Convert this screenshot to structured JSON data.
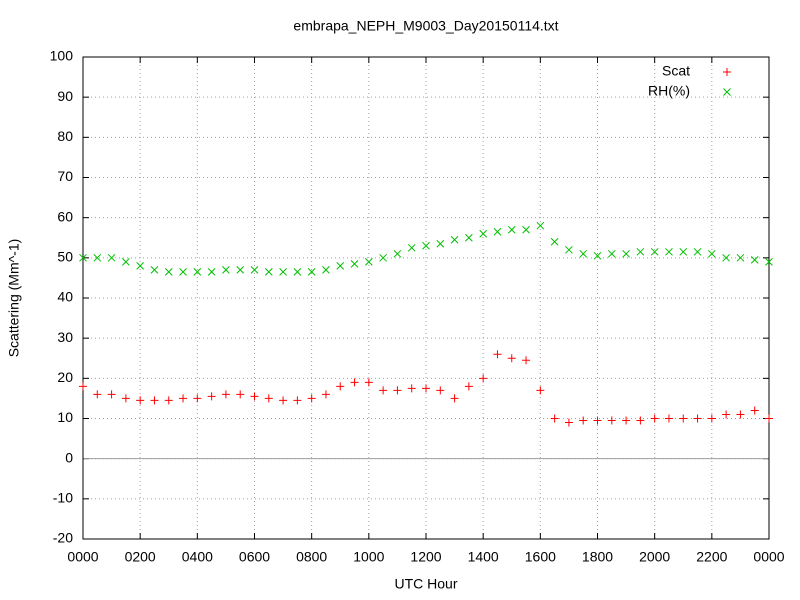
{
  "chart_data": {
    "type": "scatter",
    "title": "embrapa_NEPH_M9003_Day20150114.txt",
    "x_label": "UTC Hour",
    "y_label": "Scattering (Mm^-1)",
    "x": [
      0,
      0.5,
      1,
      1.5,
      2,
      2.5,
      3,
      3.5,
      4,
      4.5,
      5,
      5.5,
      6,
      6.5,
      7,
      7.5,
      8,
      8.5,
      9,
      9.5,
      10,
      10.5,
      11,
      11.5,
      12,
      12.5,
      13,
      13.5,
      14,
      14.5,
      15,
      15.5,
      16,
      16.5,
      17,
      17.5,
      18,
      18.5,
      19,
      19.5,
      20,
      20.5,
      21,
      21.5,
      22,
      22.5,
      23,
      23.5,
      24
    ],
    "series": [
      {
        "name": "Scat",
        "color": "#ff0000",
        "marker": "+",
        "values": [
          18,
          16,
          16,
          15,
          14.5,
          14.5,
          14.5,
          15,
          15,
          15.5,
          16,
          16,
          15.5,
          15,
          14.5,
          14.5,
          15,
          16,
          18,
          19,
          19,
          17,
          17,
          17.5,
          17.5,
          17,
          15,
          18,
          20,
          26,
          25,
          24.5,
          17,
          10,
          9,
          9.5,
          9.5,
          9.5,
          9.5,
          9.5,
          10,
          10,
          10,
          10,
          10,
          11,
          11,
          12,
          10
        ]
      },
      {
        "name": "RH(%)",
        "color": "#00c000",
        "marker": "x",
        "values": [
          50,
          50,
          50,
          49,
          48,
          47,
          46.5,
          46.5,
          46.5,
          46.5,
          47,
          47,
          47,
          46.5,
          46.5,
          46.5,
          46.5,
          47,
          48,
          48.5,
          49,
          50,
          51,
          52.5,
          53,
          53.5,
          54.5,
          55,
          56,
          56.5,
          57,
          57,
          58,
          54,
          52,
          51,
          50.5,
          51,
          51,
          51.5,
          51.5,
          51.5,
          51.5,
          51.5,
          51,
          50,
          50,
          49.5,
          49
        ]
      }
    ],
    "xlim": [
      0,
      24
    ],
    "xticks": [
      {
        "value": 0,
        "label": "0000"
      },
      {
        "value": 2,
        "label": "0200"
      },
      {
        "value": 4,
        "label": "0400"
      },
      {
        "value": 6,
        "label": "0600"
      },
      {
        "value": 8,
        "label": "0800"
      },
      {
        "value": 10,
        "label": "1000"
      },
      {
        "value": 12,
        "label": "1200"
      },
      {
        "value": 14,
        "label": "1400"
      },
      {
        "value": 16,
        "label": "1600"
      },
      {
        "value": 18,
        "label": "1800"
      },
      {
        "value": 20,
        "label": "2000"
      },
      {
        "value": 22,
        "label": "2200"
      },
      {
        "value": 24,
        "label": "0000"
      }
    ],
    "ylim": [
      -20,
      100
    ],
    "yticks": [
      -20,
      -10,
      0,
      10,
      20,
      30,
      40,
      50,
      60,
      70,
      80,
      90,
      100
    ],
    "grid": true,
    "legend": "top-right"
  }
}
